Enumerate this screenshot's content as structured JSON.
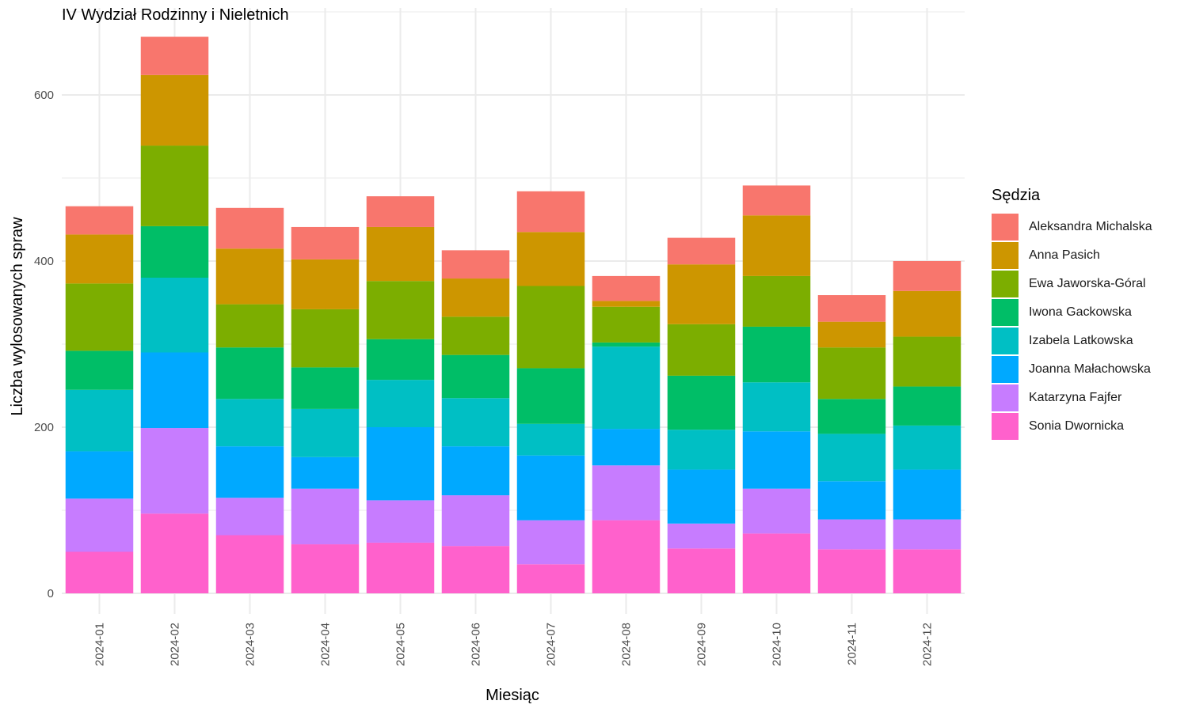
{
  "chart_data": {
    "type": "bar",
    "stacked": true,
    "title": "IV Wydział Rodzinny i Nieletnich",
    "xlabel": "Miesiąc",
    "ylabel": "Liczba wylosowanych spraw",
    "ylim": [
      0,
      670
    ],
    "yticks": [
      0,
      200,
      400,
      600
    ],
    "grid": true,
    "legend_title": "Sędzia",
    "legend_position": "right",
    "categories": [
      "2024-01",
      "2024-02",
      "2024-03",
      "2024-04",
      "2024-05",
      "2024-06",
      "2024-07",
      "2024-08",
      "2024-09",
      "2024-10",
      "2024-11",
      "2024-12"
    ],
    "series": [
      {
        "name": "Aleksandra Michalska",
        "color": "#F8766D",
        "values": [
          34,
          46,
          49,
          39,
          37,
          34,
          49,
          30,
          32,
          36,
          32,
          36
        ]
      },
      {
        "name": "Anna Pasich",
        "color": "#CD9600",
        "values": [
          59,
          85,
          67,
          60,
          65,
          46,
          65,
          7,
          72,
          73,
          31,
          55
        ]
      },
      {
        "name": "Ewa Jaworska-Góral",
        "color": "#7CAE00",
        "values": [
          81,
          97,
          52,
          70,
          70,
          46,
          99,
          43,
          62,
          61,
          62,
          60
        ]
      },
      {
        "name": "Iwona Gackowska",
        "color": "#00BE67",
        "values": [
          47,
          62,
          62,
          50,
          49,
          52,
          67,
          5,
          65,
          67,
          42,
          47
        ]
      },
      {
        "name": "Izabela Latkowska",
        "color": "#00BFC4",
        "values": [
          74,
          90,
          57,
          58,
          57,
          58,
          38,
          99,
          48,
          59,
          57,
          53
        ]
      },
      {
        "name": "Joanna Małachowska",
        "color": "#00A9FF",
        "values": [
          57,
          91,
          62,
          38,
          88,
          59,
          78,
          44,
          65,
          69,
          46,
          60
        ]
      },
      {
        "name": "Katarzyna Fajfer",
        "color": "#C77CFF",
        "values": [
          64,
          103,
          45,
          67,
          51,
          61,
          53,
          66,
          30,
          54,
          36,
          36
        ]
      },
      {
        "name": "Sonia Dwornicka",
        "color": "#FF61CC",
        "values": [
          50,
          96,
          70,
          59,
          61,
          57,
          35,
          88,
          54,
          72,
          53,
          53
        ]
      }
    ]
  }
}
